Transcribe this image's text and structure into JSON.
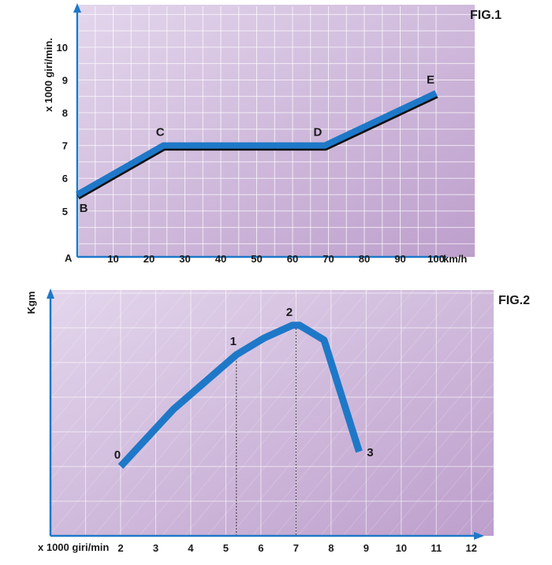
{
  "chart_data": [
    {
      "type": "line",
      "title": "FIG.1",
      "ylabel": "x 1000 giri/min.",
      "xlabel": "km/h",
      "origin_label": "A",
      "x_ticks": [
        10,
        20,
        30,
        40,
        50,
        60,
        70,
        80,
        90,
        100
      ],
      "y_ticks": [
        5,
        6,
        7,
        8,
        9,
        10
      ],
      "xlim": [
        0,
        100
      ],
      "ylim": [
        3.6,
        11.2
      ],
      "grid": true,
      "line_color": "#1e78c8",
      "background_colors": [
        "#e3d6ec",
        "#bd9fcc"
      ],
      "points": [
        {
          "label": "B",
          "x": 0,
          "y": 5.5
        },
        {
          "label": "C",
          "x": 24,
          "y": 7
        },
        {
          "label": "D",
          "x": 69,
          "y": 7
        },
        {
          "label": "E",
          "x": 100,
          "y": 8.6
        }
      ]
    },
    {
      "type": "line",
      "title": "FIG.2",
      "ylabel": "Kgm",
      "xlabel": "x 1000 giri/min",
      "x_ticks": [
        2,
        3,
        4,
        5,
        6,
        7,
        8,
        9,
        10,
        11,
        12
      ],
      "xlim": [
        0,
        12.5
      ],
      "y_ticks": [],
      "grid": true,
      "hatched": true,
      "line_color": "#1e78c8",
      "background_colors": [
        "#e3d6ec",
        "#bd9fcc"
      ],
      "points": [
        {
          "label": "0",
          "x": 2,
          "y": 3.3
        },
        {
          "label": "",
          "x": 3.5,
          "y": 6.0
        },
        {
          "label": "1",
          "x": 5.3,
          "y": 8.6
        },
        {
          "label": "",
          "x": 6.1,
          "y": 9.4
        },
        {
          "label": "2",
          "x": 6.9,
          "y": 10.0
        },
        {
          "label": "",
          "x": 7.1,
          "y": 10.0
        },
        {
          "label": "",
          "x": 7.8,
          "y": 9.3
        },
        {
          "label": "3",
          "x": 8.8,
          "y": 4.0
        }
      ],
      "reference_lines_at_x": [
        5.3,
        7
      ]
    }
  ]
}
